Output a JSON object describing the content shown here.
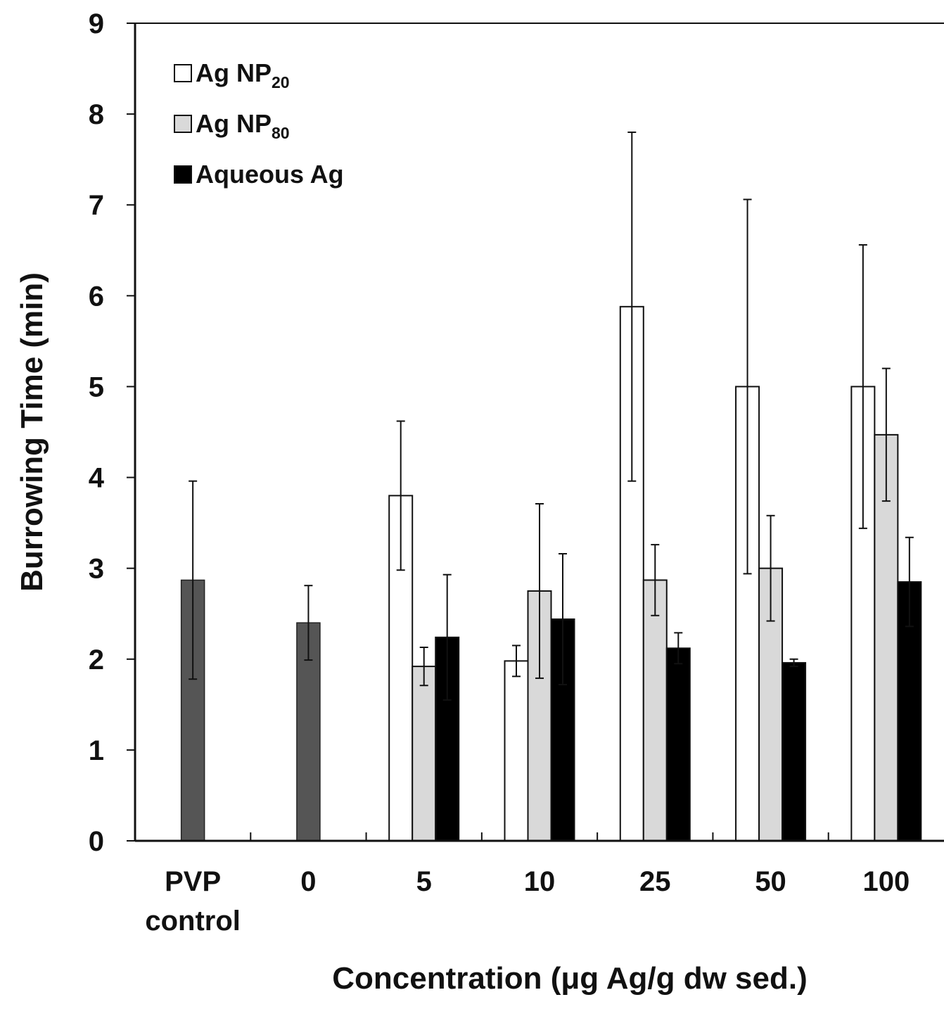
{
  "chart_data": {
    "type": "bar",
    "title": "",
    "xlabel": "Concentration (μg Ag/g dw sed.)",
    "ylabel": "Burrowing Time (min)",
    "ylim": [
      0,
      9
    ],
    "yticks": [
      "0",
      "1",
      "2",
      "3",
      "4",
      "5",
      "6",
      "7",
      "8",
      "9"
    ],
    "grid": false,
    "legend_position": "top-left",
    "categories": [
      {
        "line1": "PVP",
        "line2": "control"
      },
      {
        "line1": "0",
        "line2": ""
      },
      {
        "line1": "5",
        "line2": ""
      },
      {
        "line1": "10",
        "line2": ""
      },
      {
        "line1": "25",
        "line2": ""
      },
      {
        "line1": "50",
        "line2": ""
      },
      {
        "line1": "100",
        "line2": ""
      }
    ],
    "controls": {
      "color": "#555555",
      "values": [
        2.87,
        2.4,
        null,
        null,
        null,
        null,
        null
      ],
      "errors": [
        1.09,
        0.41,
        null,
        null,
        null,
        null,
        null
      ]
    },
    "series": [
      {
        "name": "Ag NP20",
        "legend_main": "Ag  NP",
        "legend_sub": "20",
        "color": "#ffffff",
        "values": [
          null,
          null,
          3.8,
          1.98,
          5.88,
          5.0,
          5.0
        ],
        "errors": [
          null,
          null,
          0.82,
          0.17,
          1.92,
          2.06,
          1.56
        ]
      },
      {
        "name": "Ag NP80",
        "legend_main": "Ag  NP",
        "legend_sub": "80",
        "color": "#d9d9d9",
        "values": [
          null,
          null,
          1.92,
          2.75,
          2.87,
          3.0,
          4.47
        ],
        "errors": [
          null,
          null,
          0.21,
          0.96,
          0.39,
          0.58,
          0.73
        ]
      },
      {
        "name": "Aqueous Ag",
        "legend_main": "Aqueous Ag",
        "legend_sub": "",
        "color": "#000000",
        "values": [
          null,
          null,
          2.24,
          2.44,
          2.12,
          1.96,
          2.85
        ],
        "errors": [
          null,
          null,
          0.69,
          0.72,
          0.17,
          0.04,
          0.49
        ]
      }
    ]
  }
}
